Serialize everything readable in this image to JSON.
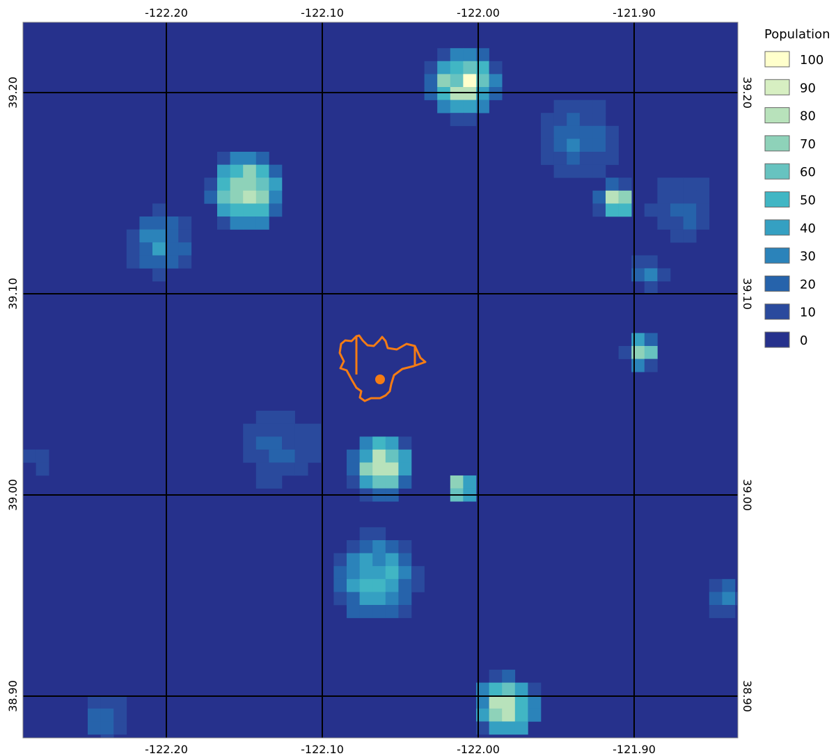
{
  "map": {
    "background_color": "#26318c",
    "grid_color": "#000000",
    "boundary_color": "#f57c14",
    "lon_ticks": [
      "-122.20",
      "-122.10",
      "-122.00",
      "-121.90"
    ],
    "lat_ticks": [
      "39.20",
      "39.10",
      "39.00",
      "38.90"
    ]
  },
  "legend": {
    "title": "Population",
    "items": [
      {
        "label": "100",
        "color": "#ffffcc"
      },
      {
        "label": "90",
        "color": "#d7efc2"
      },
      {
        "label": "80",
        "color": "#b8e2bb"
      },
      {
        "label": "70",
        "color": "#8ed2b9"
      },
      {
        "label": "60",
        "color": "#67c3c0"
      },
      {
        "label": "50",
        "color": "#41b6c4"
      },
      {
        "label": "40",
        "color": "#35a0c2"
      },
      {
        "label": "30",
        "color": "#2b83ba"
      },
      {
        "label": "20",
        "color": "#2663ab"
      },
      {
        "label": "10",
        "color": "#2a4a9d"
      },
      {
        "label": "0",
        "color": "#26318c"
      }
    ]
  }
}
